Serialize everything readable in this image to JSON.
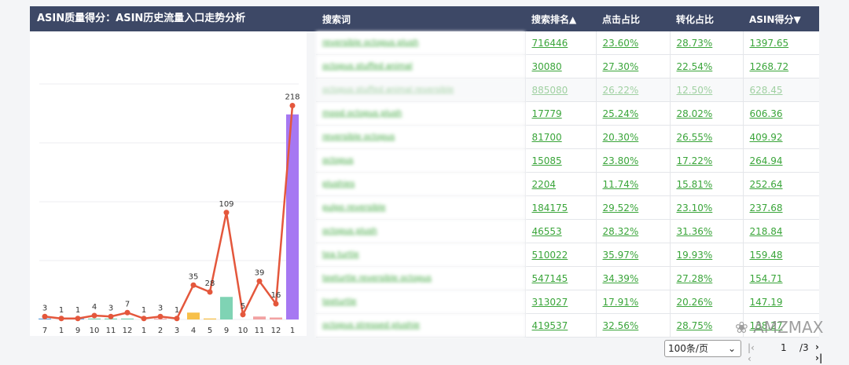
{
  "header": {
    "title": "ASIN质量得分：ASIN历史流量入口走势分析"
  },
  "chart_data": {
    "type": "line",
    "categories": [
      "7",
      "1",
      "9",
      "10",
      "11",
      "12",
      "1",
      "2",
      "3",
      "4",
      "5",
      "9",
      "10",
      "11",
      "12",
      "1"
    ],
    "series": [
      {
        "color": "#e4573c",
        "values": [
          3,
          1,
          1,
          4,
          3,
          7,
          1,
          3,
          1,
          35,
          28,
          109,
          5,
          39,
          16,
          218
        ]
      }
    ],
    "bars": {
      "values": [
        1,
        0,
        1,
        1,
        1,
        1,
        0,
        1,
        0,
        7,
        1,
        23,
        0,
        3,
        2,
        209
      ],
      "colors": [
        "#6aa7e0",
        "#6aa7e0",
        "#6aa7e0",
        "#7fd3b4",
        "#7fd3b4",
        "#7fd3b4",
        "#f2a2a2",
        "#f2a2a2",
        "#f2a2a2",
        "#f7c04a",
        "#f7c04a",
        "#7fd3b4",
        "#f2a2a2",
        "#f2a2a2",
        "#f2a2a2",
        "#a678f2"
      ]
    },
    "ylim": [
      0,
      240
    ],
    "yticks": [
      0,
      60,
      120,
      180,
      240
    ],
    "grid": true
  },
  "table": {
    "headers": [
      "搜索词",
      "搜索排名▲",
      "点击占比",
      "转化占比",
      "ASIN得分▼"
    ],
    "rows": [
      [
        "reversible octopus plush",
        "716446",
        "23.60%",
        "28.73%",
        "1397.65"
      ],
      [
        "octopus stuffed animal",
        "30080",
        "27.30%",
        "22.54%",
        "1268.72"
      ],
      [
        "octopus stuffed animal reversible",
        "885080",
        "26.22%",
        "12.50%",
        "628.45"
      ],
      [
        "mood octopus plush",
        "17779",
        "25.24%",
        "28.02%",
        "606.36"
      ],
      [
        "reversible octopus",
        "81700",
        "20.30%",
        "26.55%",
        "409.92"
      ],
      [
        "octopus",
        "15085",
        "23.80%",
        "17.22%",
        "264.94"
      ],
      [
        "plushies",
        "2204",
        "11.74%",
        "15.81%",
        "252.64"
      ],
      [
        "pulpo reversible",
        "184175",
        "29.52%",
        "23.10%",
        "237.68"
      ],
      [
        "octopus plush",
        "46553",
        "28.32%",
        "31.36%",
        "218.84"
      ],
      [
        "tea turtle",
        "510022",
        "35.97%",
        "19.93%",
        "159.48"
      ],
      [
        "teeturtle reversible octopus",
        "547145",
        "34.39%",
        "27.28%",
        "154.71"
      ],
      [
        "teeturtle",
        "313027",
        "17.91%",
        "20.26%",
        "147.19"
      ],
      [
        "octopus stressed plushie",
        "419537",
        "32.56%",
        "28.75%",
        "138.27"
      ]
    ]
  },
  "pagination": {
    "page_size": "100条/页",
    "page": "1",
    "total": "/3"
  },
  "watermark": "AMZMAX"
}
